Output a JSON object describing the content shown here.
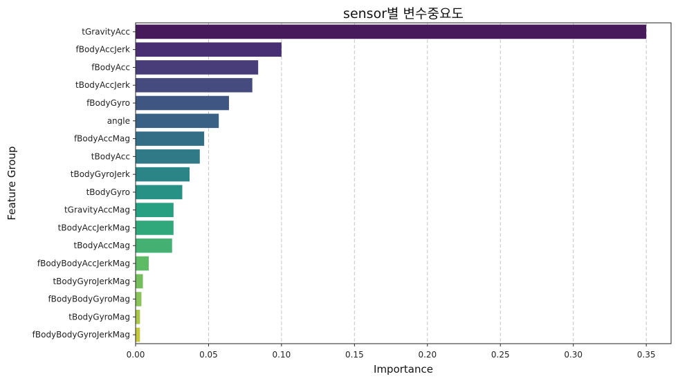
{
  "chart_data": {
    "type": "bar",
    "orientation": "horizontal",
    "title": "sensor별 변수중요도",
    "xlabel": "Importance",
    "ylabel": "Feature Group",
    "xlim": [
      0,
      0.367
    ],
    "xticks": [
      "0.00",
      "0.05",
      "0.10",
      "0.15",
      "0.20",
      "0.25",
      "0.30",
      "0.35"
    ],
    "grid": "x-dashed",
    "categories": [
      "tGravityAcc",
      "fBodyAccJerk",
      "fBodyAcc",
      "tBodyAccJerk",
      "fBodyGyro",
      "angle",
      "fBodyAccMag",
      "tBodyAcc",
      "tBodyGyroJerk",
      "tBodyGyro",
      "tGravityAccMag",
      "tBodyAccJerkMag",
      "tBodyAccMag",
      "fBodyBodyAccJerkMag",
      "tBodyGyroJerkMag",
      "fBodyBodyGyroMag",
      "tBodyGyroMag",
      "fBodyBodyGyroJerkMag"
    ],
    "values": [
      0.35,
      0.1,
      0.084,
      0.08,
      0.064,
      0.057,
      0.047,
      0.044,
      0.037,
      0.032,
      0.026,
      0.026,
      0.025,
      0.009,
      0.005,
      0.004,
      0.003,
      0.003
    ],
    "colors": [
      "#471b5b",
      "#482f73",
      "#483d79",
      "#454a7f",
      "#3f5683",
      "#396185",
      "#346d86",
      "#307a87",
      "#2b8587",
      "#279186",
      "#26a080",
      "#30a87b",
      "#44b172",
      "#5ebb65",
      "#73bf5e",
      "#8ac459",
      "#a9c64a",
      "#c5c73c"
    ]
  }
}
